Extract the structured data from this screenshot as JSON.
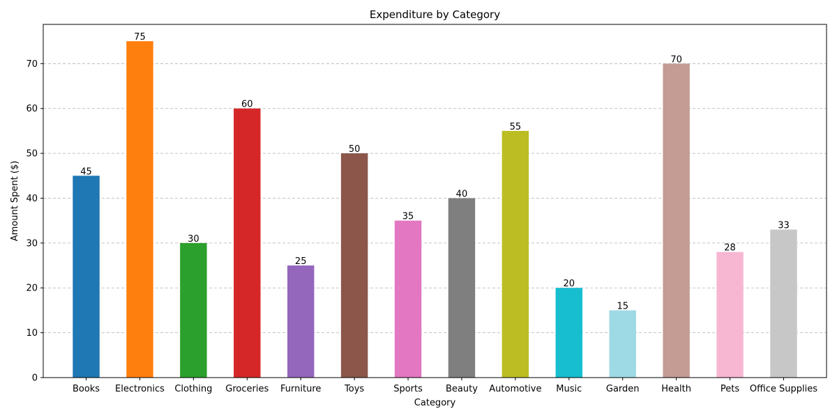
{
  "chart_data": {
    "type": "bar",
    "title": "Expenditure by Category",
    "xlabel": "Category",
    "ylabel": "Amount Spent ($)",
    "categories": [
      "Books",
      "Electronics",
      "Clothing",
      "Groceries",
      "Furniture",
      "Toys",
      "Sports",
      "Beauty",
      "Automotive",
      "Music",
      "Garden",
      "Health",
      "Pets",
      "Office Supplies"
    ],
    "values": [
      45,
      75,
      30,
      60,
      25,
      50,
      35,
      40,
      55,
      20,
      15,
      70,
      28,
      33
    ],
    "value_labels": [
      "45",
      "75",
      "30",
      "60",
      "25",
      "50",
      "35",
      "40",
      "55",
      "20",
      "15",
      "70",
      "28",
      "33"
    ],
    "colors": [
      "#1f77b4",
      "#ff7f0e",
      "#2ca02c",
      "#d62728",
      "#9467bd",
      "#8c564b",
      "#e377c2",
      "#7f7f7f",
      "#bcbd22",
      "#17becf",
      "#9edae5",
      "#c49c94",
      "#f7b6d2",
      "#c7c7c7"
    ],
    "ylim": [
      0,
      78.75
    ],
    "yticks": [
      "0",
      "10",
      "20",
      "30",
      "40",
      "50",
      "60",
      "70"
    ],
    "grid": "y-dashed"
  }
}
